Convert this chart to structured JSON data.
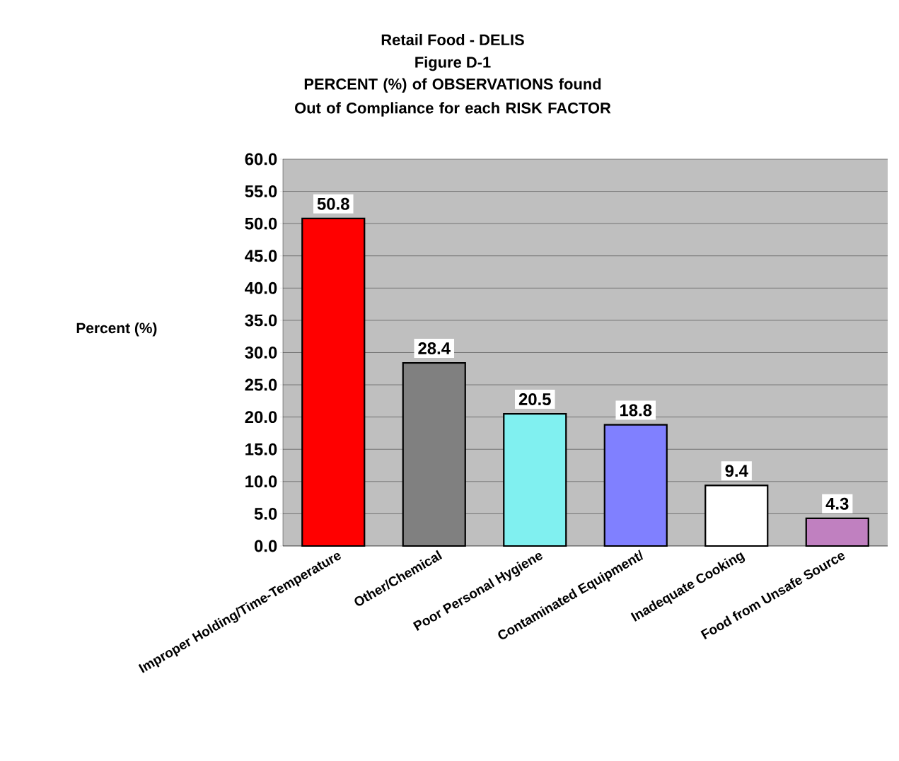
{
  "chart_data": {
    "type": "bar",
    "title": "Retail Food - DELIS",
    "subtitle": "Figure D-1",
    "annotations": [
      "PERCENT (%) of OBSERVATIONS found Out of Compliance for each RISK FACTOR"
    ],
    "ylabel": "Percent (%)",
    "categories": [
      "Improper Holding/Time-Temperature",
      "Other/Chemical",
      "Poor Personal Hygiene",
      "Contaminated Equipment/",
      "Inadequate Cooking",
      "Food from Unsafe Source"
    ],
    "values": [
      50.8,
      28.4,
      20.5,
      18.8,
      9.4,
      4.3
    ],
    "colors": [
      "#ff0000",
      "#808080",
      "#80f0f0",
      "#8080ff",
      "#ffffff",
      "#c080c0"
    ],
    "ylim": [
      0,
      60
    ],
    "yticks": [
      {
        "value": 0,
        "label": "0.0"
      },
      {
        "value": 5,
        "label": "5.0"
      },
      {
        "value": 10,
        "label": "10.0"
      },
      {
        "value": 15,
        "label": "15.0"
      },
      {
        "value": 20,
        "label": "20.0"
      },
      {
        "value": 25,
        "label": "25.0"
      },
      {
        "value": 30,
        "label": "30.0"
      },
      {
        "value": 35,
        "label": "35.0"
      },
      {
        "value": 40,
        "label": "40.0"
      },
      {
        "value": 45,
        "label": "45.0"
      },
      {
        "value": 50,
        "label": "50.0"
      },
      {
        "value": 55,
        "label": "55.0"
      },
      {
        "value": 60,
        "label": "60.0"
      }
    ],
    "grid": "y",
    "data_labels": true
  }
}
